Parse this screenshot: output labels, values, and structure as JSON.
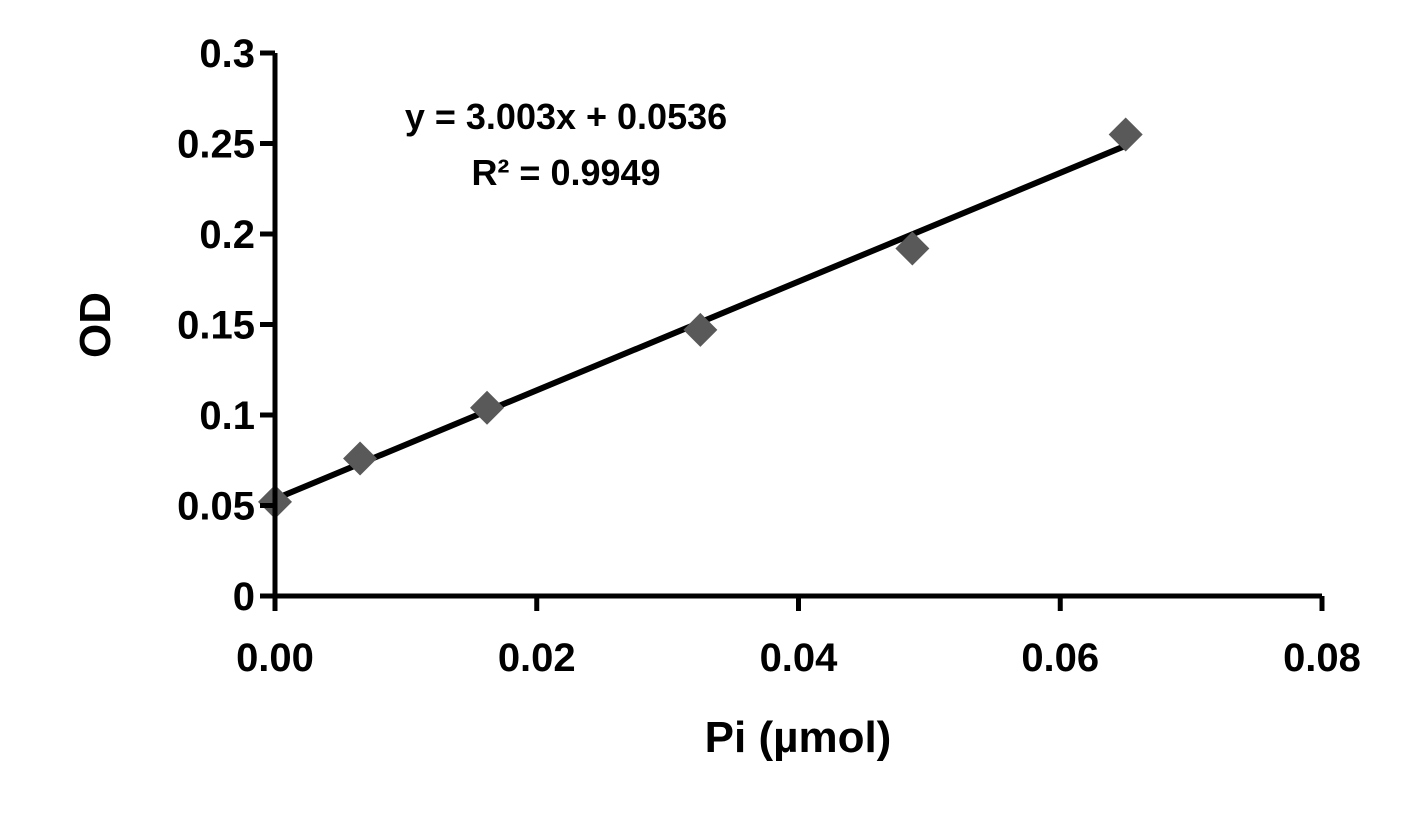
{
  "chart_data": {
    "type": "scatter",
    "title": "",
    "xlabel": "Pi (µmol)",
    "ylabel": "OD",
    "xlim": [
      0,
      0.08
    ],
    "ylim": [
      0,
      0.3
    ],
    "x_ticks": [
      0,
      0.02,
      0.04,
      0.06,
      0.08
    ],
    "x_tick_labels": [
      "0.00",
      "0.02",
      "0.04",
      "0.06",
      "0.08"
    ],
    "y_ticks": [
      0,
      0.05,
      0.1,
      0.15,
      0.2,
      0.25,
      0.3
    ],
    "y_tick_labels": [
      "0",
      "0.05",
      "0.1",
      "0.15",
      "0.2",
      "0.25",
      "0.3"
    ],
    "grid": false,
    "legend": "none",
    "series": [
      {
        "x": [
          0,
          0.0065,
          0.0162,
          0.0325,
          0.0487,
          0.065
        ],
        "y": [
          0.052,
          0.076,
          0.104,
          0.147,
          0.192,
          0.255
        ],
        "marker": "diamond",
        "color": "#595959"
      }
    ],
    "trendline": {
      "slope": 3.003,
      "intercept": 0.0536,
      "x_range": [
        0,
        0.065
      ],
      "color": "#000000"
    },
    "annotations": {
      "equation": "y = 3.003x + 0.0536",
      "r_squared": "R² = 0.9949"
    }
  }
}
